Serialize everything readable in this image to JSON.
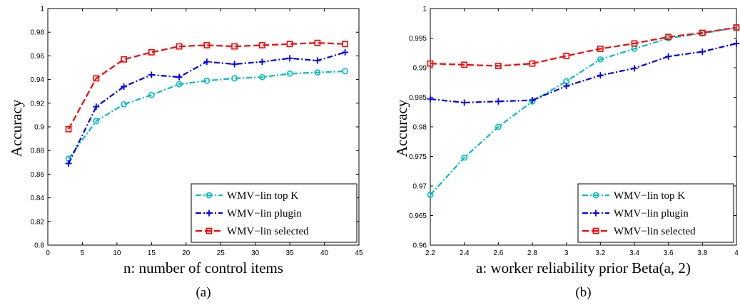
{
  "chart_data": [
    {
      "type": "line",
      "panel_label": "(a)",
      "xlabel": "n: number of control items",
      "ylabel": "Accuracy",
      "xlim": [
        0,
        45
      ],
      "ylim": [
        0.8,
        1.0
      ],
      "xticks": [
        "0",
        "5",
        "10",
        "15",
        "20",
        "25",
        "30",
        "35",
        "40",
        "45"
      ],
      "yticks": [
        "0.8",
        "0.82",
        "0.84",
        "0.86",
        "0.88",
        "0.9",
        "0.92",
        "0.94",
        "0.96",
        "0.98",
        "1"
      ],
      "legend_position": "bottom-right",
      "x": [
        3,
        7,
        11,
        15,
        19,
        23,
        27,
        31,
        35,
        39,
        43
      ],
      "series": [
        {
          "name": "WMV−lin top K",
          "color": "#00bfbf",
          "dash": "dashdot",
          "marker": "circle",
          "values": [
            0.873,
            0.905,
            0.919,
            0.927,
            0.936,
            0.939,
            0.941,
            0.942,
            0.945,
            0.946,
            0.947
          ]
        },
        {
          "name": "WMV−lin plugin",
          "color": "#0000ff",
          "dash": "dashdot",
          "marker": "plus",
          "values": [
            0.869,
            0.917,
            0.934,
            0.944,
            0.942,
            0.955,
            0.953,
            0.955,
            0.958,
            0.956,
            0.963
          ]
        },
        {
          "name": "WMV−lin selected",
          "color": "#ff0000",
          "dash": "dashed",
          "marker": "square",
          "values": [
            0.898,
            0.941,
            0.957,
            0.963,
            0.968,
            0.969,
            0.968,
            0.969,
            0.97,
            0.971,
            0.97
          ]
        }
      ]
    },
    {
      "type": "line",
      "panel_label": "(b)",
      "xlabel": "a:  worker reliability prior Beta(a, 2)",
      "ylabel": "Accuracy",
      "xlim": [
        2.2,
        4.0
      ],
      "ylim": [
        0.96,
        1.0
      ],
      "xticks": [
        "2.2",
        "2.4",
        "2.6",
        "2.8",
        "3",
        "3.2",
        "3.4",
        "3.6",
        "3.8",
        "4"
      ],
      "yticks": [
        "0.96",
        "0.965",
        "0.97",
        "0.975",
        "0.98",
        "0.985",
        "0.99",
        "0.995",
        "1"
      ],
      "legend_position": "bottom-right",
      "x": [
        2.2,
        2.4,
        2.6,
        2.8,
        3.0,
        3.2,
        3.4,
        3.6,
        3.8,
        4.0
      ],
      "series": [
        {
          "name": "WMV−lin top K",
          "color": "#00bfbf",
          "dash": "dashdot",
          "marker": "circle",
          "values": [
            0.9685,
            0.9748,
            0.98,
            0.9843,
            0.9877,
            0.9914,
            0.9932,
            0.995,
            0.9958,
            0.9968
          ]
        },
        {
          "name": "WMV−lin plugin",
          "color": "#0000ff",
          "dash": "dashdot",
          "marker": "plus",
          "values": [
            0.9847,
            0.9841,
            0.9843,
            0.9845,
            0.9869,
            0.9887,
            0.9899,
            0.9919,
            0.9927,
            0.9941
          ]
        },
        {
          "name": "WMV−lin selected",
          "color": "#ff0000",
          "dash": "dashed",
          "marker": "square",
          "values": [
            0.9907,
            0.9905,
            0.9903,
            0.9907,
            0.992,
            0.9932,
            0.9941,
            0.9952,
            0.9959,
            0.9968
          ]
        }
      ]
    }
  ]
}
